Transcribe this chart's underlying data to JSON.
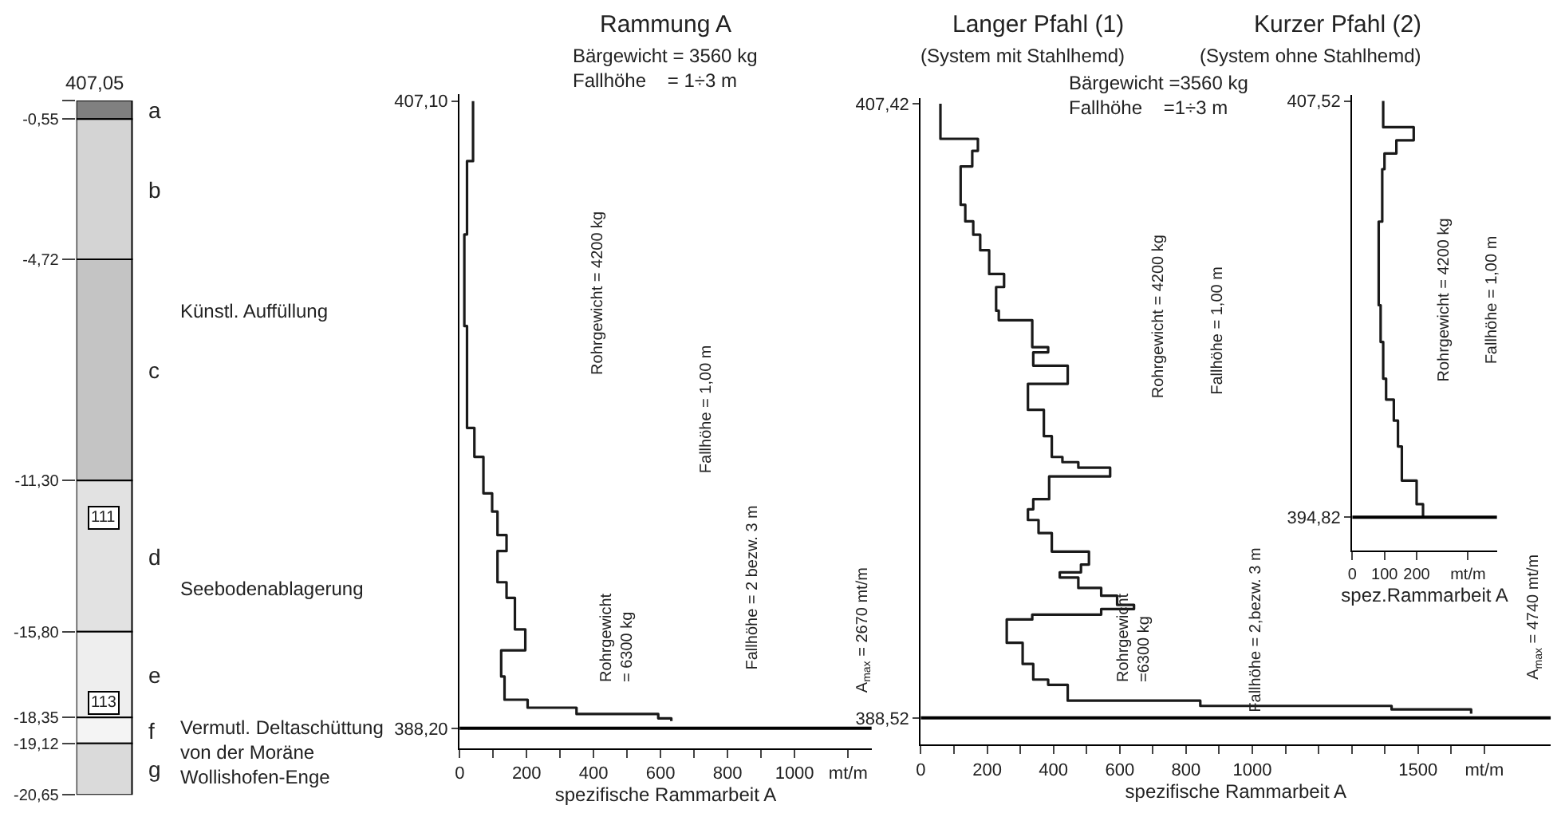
{
  "chart_data": [
    {
      "type": "bar",
      "stacked": true,
      "categories": [
        null
      ],
      "tick_labels": "y",
      "series": [
        {
          "name": "a",
          "color": "#808080",
          "values": [
            -0.55
          ]
        },
        {
          "name": "b",
          "color": "#d4d4d4",
          "values": [
            -4.17
          ]
        },
        {
          "name": "c",
          "color": "#c4c4c4",
          "values": [
            -6.58
          ]
        },
        {
          "name": "d",
          "color": "#e2e2e2",
          "values": [
            -4.5
          ]
        },
        {
          "name": "e",
          "color": "#eeeeee",
          "values": [
            -2.55
          ]
        },
        {
          "name": "f",
          "color": "#f4f4f4",
          "values": [
            -0.77
          ]
        },
        {
          "name": "g",
          "color": "#dadada",
          "values": [
            -1.53
          ]
        }
      ],
      "ylim": [
        -20.65,
        0
      ],
      "yticks": [
        {
          "value": 0,
          "label": null
        },
        {
          "value": -0.55,
          "label": "-0,55"
        },
        {
          "value": -4.72,
          "label": "-4,72"
        },
        {
          "value": -11.3,
          "label": "-11,30"
        },
        {
          "value": -15.8,
          "label": "-15,80"
        },
        {
          "value": -18.35,
          "label": "-18,35"
        },
        {
          "value": -19.12,
          "label": "-19,12"
        },
        {
          "value": -20.65,
          "label": "-20,65"
        }
      ],
      "annotations": [
        "407,05",
        "Künstl. Auffüllung",
        "Seebodenablagerung",
        "Vermutl. Deltaschüttung\nvon der Moräne\nWollishofen-Enge",
        {
          "text": "111",
          "y": -12.4
        },
        {
          "text": "113",
          "y": -17.9
        }
      ]
    },
    {
      "type": "step",
      "orientation": "horizontal",
      "title": "Rammung A",
      "subtitle": "Bärgewicht = 3560 kg\nFallhöhe    = 1÷3 m",
      "xlabel": "spezifische Rammarbeit A",
      "marker": "none",
      "series": [
        {
          "color": "#1a1a1a",
          "x": [
            407.1,
            405.29,
            403.08,
            400.32,
            397.25,
            396.38,
            395.28,
            394.73,
            394.02,
            393.54,
            392.6,
            392.13,
            391.18,
            390.55,
            389.76,
            389.06,
            388.82,
            388.63,
            388.5,
            388.42
          ],
          "values": [
            40,
            22,
            14,
            22,
            44,
            71,
            97,
            113,
            140,
            113,
            140,
            165,
            196,
            124,
            134,
            203,
            349,
            593,
            632,
            632
          ]
        }
      ],
      "xlim": [
        0,
        1230
      ],
      "xticks": [
        0,
        {
          "value": 100,
          "label": null
        },
        200,
        {
          "value": 300,
          "label": null
        },
        400,
        {
          "value": 500,
          "label": null
        },
        600,
        {
          "value": 700,
          "label": null
        },
        800,
        {
          "value": 900,
          "label": null
        },
        1000,
        {
          "value": 1160,
          "label": "mt/m"
        }
      ],
      "ylim": [
        387.6,
        407.3
      ],
      "yticks": [
        {
          "value": 407.1,
          "label": "407,10"
        },
        {
          "value": 388.2,
          "label": "388,20"
        }
      ],
      "ref_lines": [
        {
          "axis": "y",
          "value": 388.2
        }
      ],
      "annotations": [
        "Rohrgewicht = 4200 kg",
        "Rohrgewicht\n= 6300 kg",
        "Fallhöhe = 1,00 m",
        "Fallhöhe = 2 bezw. 3 m",
        "A$_{max}$ = 2670 mt/m"
      ]
    },
    {
      "type": "step",
      "orientation": "horizontal",
      "title": "Langer Pfahl (1)",
      "subtitle": "(System mit Stahlhemd)",
      "xlabel": "spezifische Rammarbeit A",
      "marker": "none",
      "series": [
        {
          "color": "#1a1a1a",
          "x": [
            407.42,
            406.34,
            405.97,
            405.49,
            404.31,
            403.8,
            403.39,
            402.91,
            402.18,
            401.78,
            401.05,
            400.76,
            399.93,
            399.77,
            399.36,
            398.8,
            398.0,
            397.19,
            396.55,
            396.39,
            396.22,
            395.95,
            395.25,
            394.94,
            394.61,
            394.21,
            393.64,
            393.24,
            393.0,
            392.84,
            392.52,
            392.28,
            392.0,
            391.87,
            391.7,
            391.55,
            390.83,
            390.18,
            389.7,
            389.54,
            389.05,
            388.89,
            388.78,
            388.65
          ],
          "values": [
            59,
            172,
            155,
            120,
            134,
            158,
            179,
            206,
            251,
            227,
            235,
            336,
            384,
            339,
            443,
            323,
            371,
            395,
            427,
            475,
            571,
            387,
            339,
            323,
            355,
            395,
            507,
            483,
            419,
            475,
            544,
            592,
            643,
            544,
            336,
            259,
            307,
            339,
            384,
            443,
            843,
            1420,
            1660,
            1660
          ]
        }
      ],
      "xlim": [
        0,
        1900
      ],
      "xticks": [
        0,
        {
          "value": 100,
          "label": null
        },
        200,
        {
          "value": 300,
          "label": null
        },
        400,
        {
          "value": 500,
          "label": null
        },
        600,
        {
          "value": 700,
          "label": null
        },
        800,
        {
          "value": 900,
          "label": null
        },
        1000,
        {
          "value": 1100,
          "label": null
        },
        {
          "value": 1200,
          "label": null
        },
        {
          "value": 1300,
          "label": null
        },
        {
          "value": 1400,
          "label": null
        },
        1500,
        {
          "value": 1600,
          "label": null
        },
        {
          "value": 1700,
          "label": "mt/m"
        }
      ],
      "ylim": [
        387.7,
        407.6
      ],
      "yticks": [
        {
          "value": 407.42,
          "label": "407,42"
        },
        {
          "value": 388.52,
          "label": "388,52"
        }
      ],
      "ref_lines": [
        {
          "axis": "y",
          "value": 388.52
        }
      ],
      "annotations": [
        "Bärgewicht =3560 kg\nFallhöhe    =1÷3 m",
        "Rohrgewicht = 4200 kg",
        "Rohrgewicht\n=6300 kg",
        "Fallhöhe = 1,00 m",
        "Fallhöhe = 2,bezw. 3 m",
        "A$_{max}$ = 4740 mt/m"
      ]
    },
    {
      "type": "step",
      "orientation": "horizontal",
      "title": "Kurzer Pfahl (2)",
      "subtitle": "(System ohne Stahlhemd)",
      "xlabel": "spez.Rammarbeit A",
      "marker": "none",
      "series": [
        {
          "color": "#1a1a1a",
          "x": [
            407.52,
            406.72,
            406.32,
            405.92,
            405.44,
            403.84,
            401.29,
            400.17,
            399.05,
            398.41,
            397.77,
            396.98,
            395.94,
            395.22,
            394.82
          ],
          "values": [
            96,
            191,
            137,
            100,
            93,
            82,
            88,
            96,
            105,
            129,
            142,
            154,
            200,
            220,
            220
          ]
        }
      ],
      "xlim": [
        0,
        450
      ],
      "xticks": [
        0,
        100,
        200,
        {
          "value": 360,
          "label": "mt/m"
        }
      ],
      "ylim": [
        393.8,
        407.7
      ],
      "yticks": [
        {
          "value": 407.52,
          "label": "407,52"
        },
        {
          "value": 394.82,
          "label": "394,82"
        }
      ],
      "ref_lines": [
        {
          "axis": "y",
          "value": 394.82
        }
      ],
      "annotations": [
        "Rohrgewicht = 4200 kg",
        "Fallhöhe = 1,00 m"
      ]
    }
  ]
}
